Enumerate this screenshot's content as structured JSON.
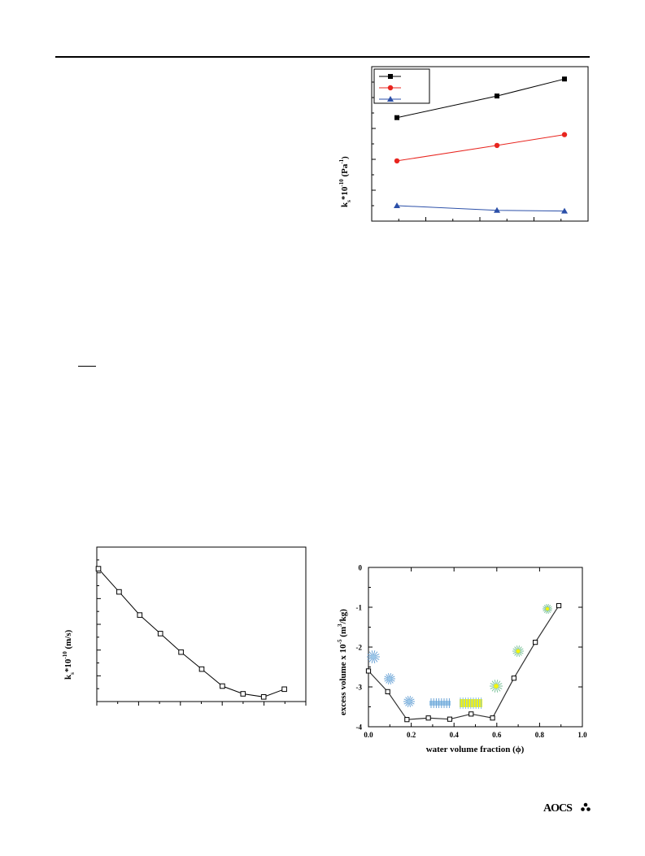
{
  "fig_top_right": {
    "ylabel": "k",
    "ylabel_sub": "s",
    "ylabel_rest": "*10",
    "ylabel_sup": "-10",
    "ylabel_unit_open": " (Pa",
    "ylabel_unit_sup": "-1",
    "ylabel_unit_close": ")",
    "chart_data": {
      "type": "line",
      "x": [
        1,
        2,
        3
      ],
      "series": [
        {
          "color": "#000000",
          "marker": "square",
          "values": [
            0.67,
            0.81,
            0.92
          ]
        },
        {
          "color": "#e8251f",
          "marker": "circle",
          "values": [
            0.39,
            0.49,
            0.56
          ]
        },
        {
          "color": "#2b4fa8",
          "marker": "triangle",
          "values": [
            0.1,
            0.07,
            0.065
          ]
        }
      ],
      "ylim": [
        0,
        1
      ],
      "legend": "top-left"
    }
  },
  "fig_bottom_left": {
    "ylabel": "k",
    "ylabel_sub": "s",
    "ylabel_rest": "*10",
    "ylabel_sup": "-10",
    "ylabel_unit": " (m/s)",
    "chart_data": {
      "type": "line",
      "x": [
        0,
        1,
        2,
        3,
        4,
        5,
        6,
        7,
        8,
        9
      ],
      "values": [
        0.86,
        0.71,
        0.56,
        0.44,
        0.32,
        0.21,
        0.1,
        0.05,
        0.03,
        0.08
      ],
      "marker": "open-square",
      "ylim": [
        0,
        1
      ]
    }
  },
  "fig_bottom_right": {
    "xlabel": "water volume fraction (ϕ)",
    "ylabel_main": "excess volume x 10",
    "ylabel_sup": "-5",
    "ylabel_unit_open": " (m",
    "ylabel_unit_sup": "3",
    "ylabel_unit_close": "/kg)",
    "chart_data": {
      "type": "line",
      "x": [
        0.0,
        0.09,
        0.18,
        0.28,
        0.38,
        0.48,
        0.58,
        0.68,
        0.78,
        0.89
      ],
      "values": [
        -2.6,
        -3.12,
        -3.82,
        -3.78,
        -3.81,
        -3.68,
        -3.78,
        -2.78,
        -1.88,
        -0.96
      ],
      "xlim": [
        0.0,
        1.0
      ],
      "ylim": [
        -4,
        0
      ],
      "xticks": [
        "0.0",
        "0.2",
        "0.4",
        "0.6",
        "0.8",
        "1.0"
      ],
      "yticks": [
        "0",
        "-1",
        "-2",
        "-3",
        "-4"
      ],
      "marker": "open-square"
    }
  },
  "logo": {
    "text": "AOCS"
  },
  "colors": {
    "shade": "#f6f6f6",
    "red": "#e8251f",
    "blue": "#2b4fa8",
    "aggregate_blue": "#9cc7e8",
    "aggregate_yellow": "#f5f50a"
  }
}
